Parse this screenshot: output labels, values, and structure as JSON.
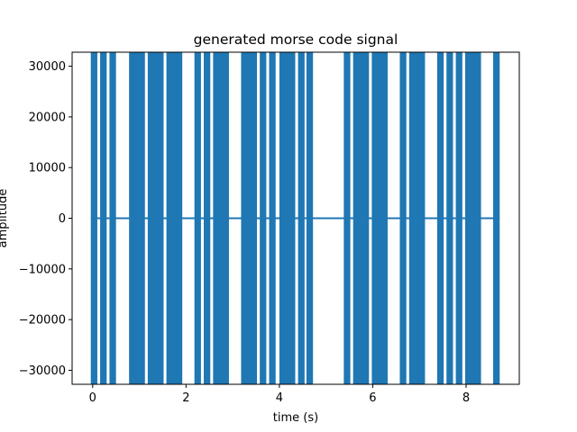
{
  "chart_data": {
    "type": "line",
    "title": "generated morse code signal",
    "xlabel": "time (s)",
    "ylabel": "amplitude",
    "xlim": [
      -0.44,
      9.14
    ],
    "ylim": [
      -32767,
      32767
    ],
    "xticks": [
      0,
      2,
      4,
      6,
      8
    ],
    "yticks": [
      -30000,
      -20000,
      -10000,
      0,
      10000,
      20000,
      30000
    ],
    "grid": false,
    "legend": "none",
    "series": [
      {
        "color": "#1f77b4",
        "tone_amplitude": 32767,
        "silence_amplitude": 0,
        "tone_segments": [
          [
            -0.04,
            0.1
          ],
          [
            0.16,
            0.3
          ],
          [
            0.36,
            0.5
          ],
          [
            0.78,
            1.12
          ],
          [
            1.18,
            1.52
          ],
          [
            1.58,
            1.92
          ],
          [
            2.18,
            2.32
          ],
          [
            2.38,
            2.52
          ],
          [
            2.58,
            2.92
          ],
          [
            3.18,
            3.52
          ],
          [
            3.58,
            3.72
          ],
          [
            3.78,
            3.92
          ],
          [
            4.0,
            4.34
          ],
          [
            4.4,
            4.54
          ],
          [
            4.58,
            4.72
          ],
          [
            5.38,
            5.52
          ],
          [
            5.58,
            5.92
          ],
          [
            5.98,
            6.32
          ],
          [
            6.58,
            6.72
          ],
          [
            6.78,
            7.12
          ],
          [
            7.38,
            7.52
          ],
          [
            7.58,
            7.72
          ],
          [
            7.78,
            7.92
          ],
          [
            7.98,
            8.32
          ],
          [
            8.58,
            8.72
          ]
        ],
        "silence_span": [
          -0.04,
          8.72
        ]
      }
    ]
  }
}
